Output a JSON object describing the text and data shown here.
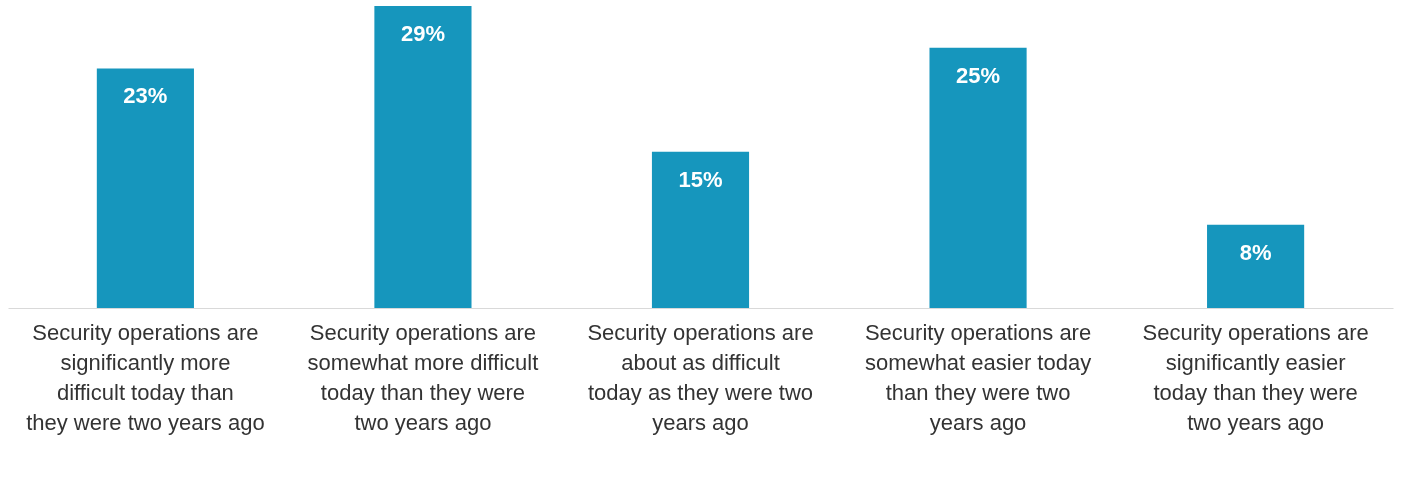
{
  "chart_data": {
    "type": "bar",
    "categories": [
      "Security operations are significantly more difficult today than they were two years ago",
      "Security operations are somewhat more difficult today than they were two years ago",
      "Security operations are about as difficult today as they were two years ago",
      "Security operations are somewhat easier today than they were two years ago",
      "Security operations are significantly easier today than they were two years ago"
    ],
    "values": [
      23,
      29,
      15,
      25,
      8
    ],
    "value_labels": [
      "23%",
      "29%",
      "15%",
      "25%",
      "8%"
    ],
    "color": "#1696bd"
  }
}
